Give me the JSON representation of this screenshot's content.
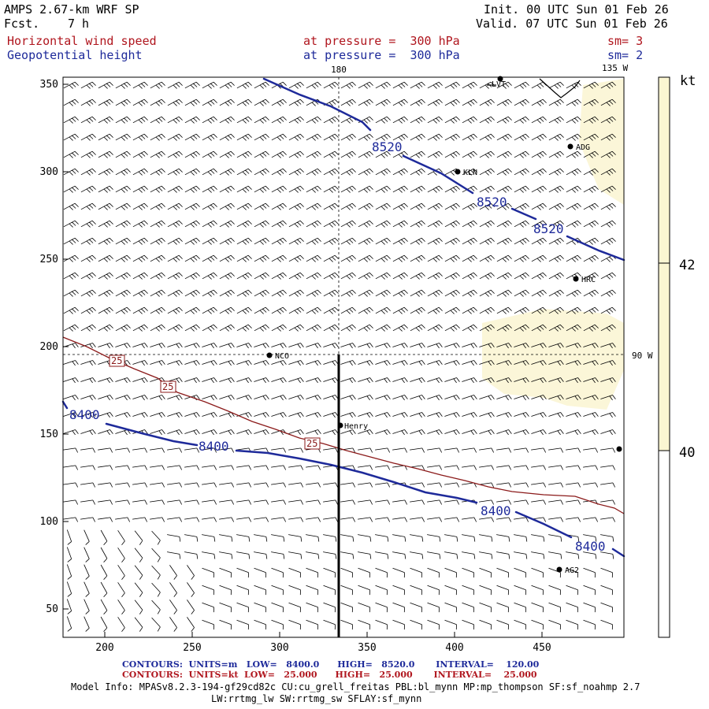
{
  "header": {
    "title": "AMPS 2.67-km WRF SP",
    "fcst_label": "Fcst.",
    "fcst_value": "7 h",
    "init": "Init. 00 UTC Sun 01 Feb 26",
    "valid": "Valid. 07 UTC Sun 01 Feb 26",
    "field1_name": "Horizontal wind speed",
    "field1_level": "at pressure =  300 hPa",
    "field1_sm": "sm= 3",
    "field2_name": "Geopotential height",
    "field2_level": "at pressure =  300 hPa",
    "field2_sm": "sm= 2",
    "colors": {
      "field1": "#b0161e",
      "field2": "#1e2a9a"
    }
  },
  "map": {
    "x_ticks": [
      "200",
      "250",
      "300",
      "350",
      "400",
      "450"
    ],
    "y_ticks": [
      "350",
      "300",
      "250",
      "200",
      "150",
      "100",
      "50"
    ],
    "meridian_label": "180",
    "corner_label": "135 W",
    "parallel_label": "90 W",
    "stations": [
      "LVT",
      "ADG",
      "KLN",
      "HRC",
      "NCO",
      "Henry",
      "AG2"
    ],
    "height_contour_labels": [
      "8520",
      "8520",
      "8520",
      "8400",
      "8400",
      "8400",
      "8400"
    ],
    "speed_contour_labels": [
      "25",
      "25",
      "25"
    ],
    "colors": {
      "height": "#1e2a9a",
      "speed": "#8b1a1a",
      "shade": "#fbf6d8"
    }
  },
  "colorbar": {
    "unit": "kt",
    "labels": [
      "42",
      "40"
    ],
    "colors": [
      "#fbf6d2",
      "#ffffff"
    ]
  },
  "footer": {
    "line1": "CONTOURS:  UNITS=m   LOW=   8400.0      HIGH=   8520.0       INTERVAL=    120.00",
    "line2": "CONTOURS:  UNITS=kt  LOW=   25.000      HIGH=   25.000       INTERVAL=    25.000",
    "model_info": "Model Info: MPASv8.2.3-194-gf29cd82c CU:cu_grell_freitas PBL:bl_mynn MP:mp_thompson SF:sf_noahmp 2.7",
    "model_info2": "LW:rrtmg_lw SW:rrtmg_sw SFLAY:sf_mynn"
  }
}
